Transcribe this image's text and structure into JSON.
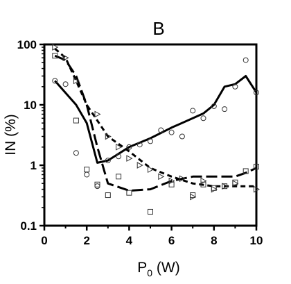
{
  "chart_data": {
    "type": "line",
    "title": "B",
    "xlabel": {
      "main": "P",
      "sub": "0",
      "unit": " (W)"
    },
    "ylabel": "IN (%)",
    "x_ticks": [
      "0",
      "2",
      "4",
      "6",
      "8",
      "10"
    ],
    "y_ticks": [
      "0.1",
      "1",
      "10",
      "100"
    ],
    "xlim": [
      0,
      10
    ],
    "ylim": [
      0.1,
      100
    ],
    "y_scale": "log",
    "grid": false,
    "legend": "none",
    "series": [
      {
        "line_style": "solid",
        "marker": "circle",
        "line": {
          "x": [
            0.5,
            1.5,
            2.0,
            2.5,
            3.0,
            4.0,
            5.0,
            6.0,
            7.0,
            7.5,
            8.0,
            8.5,
            9.0,
            9.5,
            10.0
          ],
          "y": [
            25,
            10,
            5.0,
            1.1,
            1.2,
            2.0,
            2.8,
            4.2,
            6.0,
            7.2,
            10,
            20,
            22,
            30,
            16
          ]
        },
        "points": {
          "x": [
            0.5,
            1.0,
            1.5,
            2.0,
            2.5,
            3.0,
            3.5,
            4.0,
            4.5,
            5.0,
            5.5,
            6.0,
            6.5,
            7.0,
            7.5,
            8.0,
            8.5,
            9.0,
            9.5,
            10.0
          ],
          "y": [
            25,
            22,
            1.6,
            0.7,
            0.45,
            1.2,
            1.4,
            2.0,
            2.2,
            2.5,
            3.8,
            3.5,
            3.0,
            8.0,
            6.0,
            9.5,
            8.5,
            20,
            55,
            16
          ]
        }
      },
      {
        "line_style": "long-dash",
        "marker": "square",
        "line": {
          "x": [
            0.5,
            1.0,
            1.5,
            2.0,
            2.5,
            3.0,
            4.0,
            5.0,
            6.0,
            7.0,
            8.0,
            9.0,
            9.5,
            10.0
          ],
          "y": [
            65,
            55,
            30,
            10,
            2.0,
            0.5,
            0.38,
            0.4,
            0.55,
            0.65,
            0.65,
            0.65,
            0.75,
            0.9
          ]
        },
        "points": {
          "x": [
            0.5,
            1.5,
            2.0,
            2.5,
            3.0,
            3.5,
            4.0,
            5.0,
            6.0,
            7.0,
            7.5,
            8.0,
            8.5,
            9.0,
            9.5,
            10.0
          ],
          "y": [
            65,
            5.5,
            0.85,
            0.48,
            0.32,
            0.65,
            0.35,
            0.17,
            0.48,
            0.32,
            0.48,
            0.42,
            0.45,
            0.52,
            0.8,
            0.95
          ]
        }
      },
      {
        "line_style": "short-dash",
        "marker": "triangle-right",
        "line": {
          "x": [
            0.5,
            1.0,
            1.5,
            2.0,
            2.5,
            3.0,
            4.0,
            5.0,
            6.0,
            7.0,
            8.0,
            9.0,
            10.0
          ],
          "y": [
            85,
            60,
            25,
            10,
            5.5,
            3.0,
            1.7,
            0.9,
            0.65,
            0.5,
            0.45,
            0.45,
            0.45
          ]
        },
        "points": {
          "x": [
            0.5,
            1.0,
            1.5,
            2.5,
            3.0,
            3.5,
            4.0,
            4.5,
            5.0,
            5.5,
            6.0,
            6.5,
            7.0,
            7.5,
            8.0,
            8.5,
            9.0,
            10.0
          ],
          "y": [
            90,
            60,
            25,
            7.0,
            3.0,
            2.0,
            1.3,
            1.0,
            0.85,
            0.65,
            0.55,
            0.6,
            0.3,
            0.55,
            0.4,
            0.45,
            0.5,
            0.4
          ]
        }
      }
    ]
  }
}
